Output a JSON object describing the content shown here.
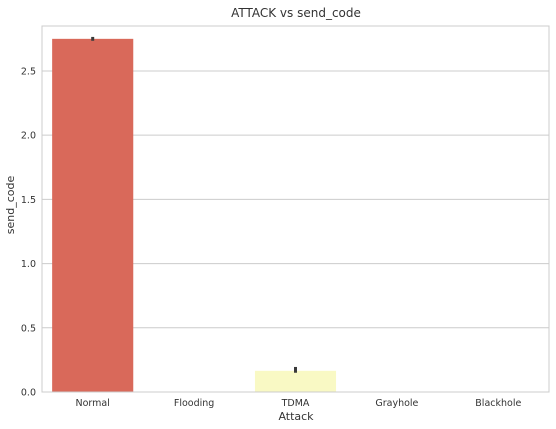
{
  "chart_data": {
    "type": "bar",
    "title": "ATTACK vs send_code",
    "xlabel": "Attack",
    "ylabel": "send_code",
    "categories": [
      "Normal",
      "Flooding",
      "TDMA",
      "Grayhole",
      "Blackhole"
    ],
    "values": [
      2.75,
      0.0,
      0.165,
      0.0,
      0.0
    ],
    "error_low": [
      2.735,
      0.0,
      0.15,
      0.0,
      0.0
    ],
    "error_high": [
      2.765,
      0.0,
      0.195,
      0.0,
      0.0
    ],
    "bar_colors": [
      "#d9695a",
      "#ee8c55",
      "#f9f9c4",
      "#a3d9a4",
      "#5fa4c7"
    ],
    "ylim": [
      0,
      2.85
    ],
    "yticks": [
      0.0,
      0.5,
      1.0,
      1.5,
      2.0,
      2.5
    ],
    "ytick_labels": [
      "0.0",
      "0.5",
      "1.0",
      "1.5",
      "2.0",
      "2.5"
    ],
    "grid": true,
    "grid_color": "#cccccc",
    "errorbar_color": "#3a3a3a"
  }
}
